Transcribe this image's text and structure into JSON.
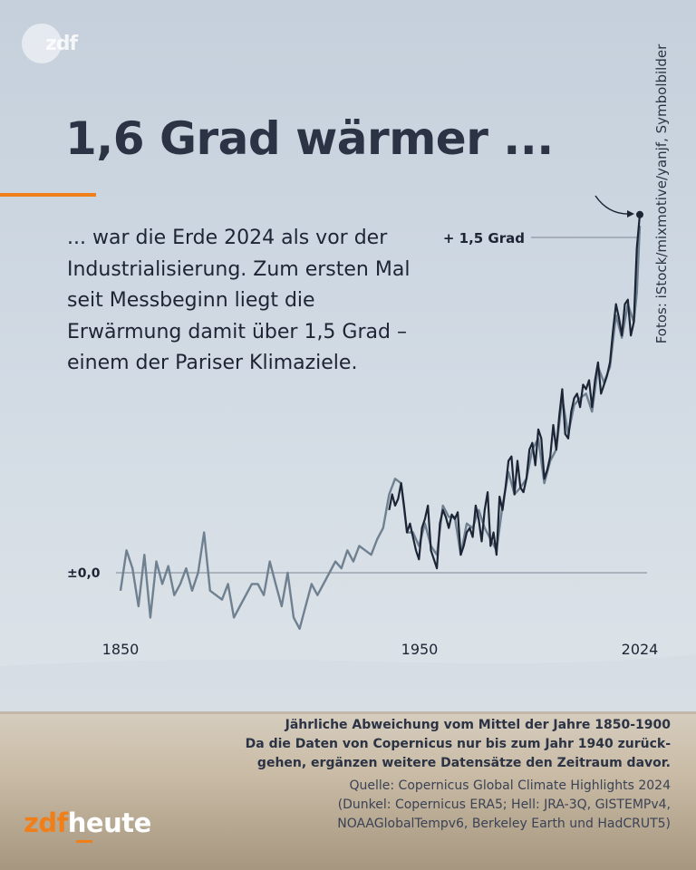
{
  "brand": {
    "top_logo": "zdf",
    "bottom_logo_part1": "zdf",
    "bottom_logo_part2": "heute",
    "accent_color": "#f07f1a",
    "text_color": "#2b3344"
  },
  "photo_credit": "Fotos: iStock/mixmotive/yanjf, Symbolbilder",
  "headline": "1,6 Grad wärmer ...",
  "intro_text": "... war die Erde 2024 als vor der Industrialisierung. Zum ersten Mal seit Messbeginn liegt die Erwärmung damit über 1,5 Grad – einem der Pariser Klimaziele.",
  "notes": {
    "line1": "Jährliche Abweichung vom Mittel der Jahre 1850-1900",
    "line2": "Da die Daten von Copernicus nur bis zum Jahr 1940 zurück-",
    "line3": "gehen, ergänzen weitere Datensätze den Zeitraum davor.",
    "source1": "Quelle: Copernicus Global Climate Highlights 2024",
    "source2": "(Dunkel: Copernicus ERA5; Hell: JRA-3Q, GISTEMPv4,",
    "source3": "NOAAGlobalTempv6, Berkeley Earth und HadCRUT5)"
  },
  "chart_data": {
    "type": "line",
    "title": "",
    "xlabel": "",
    "ylabel": "",
    "x_range": [
      1850,
      2024
    ],
    "y_range": [
      -0.35,
      1.6
    ],
    "xticks": [
      "1850",
      "1950",
      "2024"
    ],
    "reference_lines": [
      {
        "value": 0.0,
        "label": "±0,0"
      },
      {
        "value": 1.5,
        "label": "+ 1,5 Grad"
      }
    ],
    "grid": false,
    "legend": "none",
    "series": [
      {
        "style": "light",
        "color": "#6f8091",
        "points": [
          [
            1850,
            -0.08
          ],
          [
            1852,
            0.1
          ],
          [
            1854,
            0.02
          ],
          [
            1856,
            -0.15
          ],
          [
            1858,
            0.08
          ],
          [
            1860,
            -0.2
          ],
          [
            1862,
            0.05
          ],
          [
            1864,
            -0.05
          ],
          [
            1866,
            0.03
          ],
          [
            1868,
            -0.1
          ],
          [
            1870,
            -0.05
          ],
          [
            1872,
            0.02
          ],
          [
            1874,
            -0.08
          ],
          [
            1876,
            0.0
          ],
          [
            1878,
            0.18
          ],
          [
            1880,
            -0.08
          ],
          [
            1882,
            -0.1
          ],
          [
            1884,
            -0.12
          ],
          [
            1886,
            -0.05
          ],
          [
            1888,
            -0.2
          ],
          [
            1890,
            -0.15
          ],
          [
            1892,
            -0.1
          ],
          [
            1894,
            -0.05
          ],
          [
            1896,
            -0.05
          ],
          [
            1898,
            -0.1
          ],
          [
            1900,
            0.05
          ],
          [
            1902,
            -0.05
          ],
          [
            1904,
            -0.15
          ],
          [
            1906,
            0.0
          ],
          [
            1908,
            -0.2
          ],
          [
            1910,
            -0.25
          ],
          [
            1912,
            -0.15
          ],
          [
            1914,
            -0.05
          ],
          [
            1916,
            -0.1
          ],
          [
            1918,
            -0.05
          ],
          [
            1920,
            0.0
          ],
          [
            1922,
            0.05
          ],
          [
            1924,
            0.02
          ],
          [
            1926,
            0.1
          ],
          [
            1928,
            0.05
          ],
          [
            1930,
            0.12
          ],
          [
            1932,
            0.1
          ],
          [
            1934,
            0.08
          ],
          [
            1936,
            0.15
          ],
          [
            1938,
            0.2
          ],
          [
            1940,
            0.35
          ],
          [
            1942,
            0.42
          ],
          [
            1944,
            0.4
          ],
          [
            1946,
            0.18
          ],
          [
            1948,
            0.18
          ],
          [
            1950,
            0.12
          ],
          [
            1952,
            0.22
          ],
          [
            1954,
            0.12
          ],
          [
            1956,
            0.08
          ],
          [
            1958,
            0.3
          ],
          [
            1960,
            0.25
          ],
          [
            1962,
            0.25
          ],
          [
            1964,
            0.08
          ],
          [
            1966,
            0.22
          ],
          [
            1968,
            0.2
          ],
          [
            1970,
            0.28
          ],
          [
            1972,
            0.2
          ],
          [
            1974,
            0.15
          ],
          [
            1976,
            0.1
          ],
          [
            1978,
            0.3
          ],
          [
            1980,
            0.45
          ],
          [
            1982,
            0.35
          ],
          [
            1984,
            0.38
          ],
          [
            1986,
            0.42
          ],
          [
            1988,
            0.55
          ],
          [
            1990,
            0.6
          ],
          [
            1992,
            0.4
          ],
          [
            1994,
            0.5
          ],
          [
            1996,
            0.55
          ],
          [
            1998,
            0.78
          ],
          [
            2000,
            0.62
          ],
          [
            2002,
            0.75
          ],
          [
            2004,
            0.78
          ],
          [
            2006,
            0.8
          ],
          [
            2008,
            0.72
          ],
          [
            2010,
            0.92
          ],
          [
            2012,
            0.85
          ],
          [
            2014,
            0.92
          ],
          [
            2016,
            1.15
          ],
          [
            2018,
            1.05
          ],
          [
            2020,
            1.2
          ],
          [
            2022,
            1.12
          ],
          [
            2023,
            1.25
          ],
          [
            2024,
            1.55
          ]
        ]
      },
      {
        "style": "dark",
        "color": "#1c2535",
        "points": [
          [
            1940,
            0.28
          ],
          [
            1941,
            0.35
          ],
          [
            1942,
            0.3
          ],
          [
            1943,
            0.33
          ],
          [
            1944,
            0.4
          ],
          [
            1945,
            0.3
          ],
          [
            1946,
            0.18
          ],
          [
            1947,
            0.22
          ],
          [
            1948,
            0.16
          ],
          [
            1949,
            0.1
          ],
          [
            1950,
            0.06
          ],
          [
            1951,
            0.2
          ],
          [
            1952,
            0.24
          ],
          [
            1953,
            0.3
          ],
          [
            1954,
            0.1
          ],
          [
            1955,
            0.06
          ],
          [
            1956,
            0.02
          ],
          [
            1957,
            0.22
          ],
          [
            1958,
            0.28
          ],
          [
            1959,
            0.25
          ],
          [
            1960,
            0.2
          ],
          [
            1961,
            0.26
          ],
          [
            1962,
            0.24
          ],
          [
            1963,
            0.27
          ],
          [
            1964,
            0.08
          ],
          [
            1965,
            0.12
          ],
          [
            1966,
            0.18
          ],
          [
            1967,
            0.2
          ],
          [
            1968,
            0.16
          ],
          [
            1969,
            0.3
          ],
          [
            1970,
            0.24
          ],
          [
            1971,
            0.14
          ],
          [
            1972,
            0.28
          ],
          [
            1973,
            0.36
          ],
          [
            1974,
            0.12
          ],
          [
            1975,
            0.18
          ],
          [
            1976,
            0.08
          ],
          [
            1977,
            0.34
          ],
          [
            1978,
            0.28
          ],
          [
            1979,
            0.38
          ],
          [
            1980,
            0.5
          ],
          [
            1981,
            0.52
          ],
          [
            1982,
            0.35
          ],
          [
            1983,
            0.5
          ],
          [
            1984,
            0.38
          ],
          [
            1985,
            0.36
          ],
          [
            1986,
            0.42
          ],
          [
            1987,
            0.55
          ],
          [
            1988,
            0.58
          ],
          [
            1989,
            0.48
          ],
          [
            1990,
            0.64
          ],
          [
            1991,
            0.6
          ],
          [
            1992,
            0.42
          ],
          [
            1993,
            0.46
          ],
          [
            1994,
            0.52
          ],
          [
            1995,
            0.66
          ],
          [
            1996,
            0.55
          ],
          [
            1997,
            0.7
          ],
          [
            1998,
            0.82
          ],
          [
            1999,
            0.62
          ],
          [
            2000,
            0.6
          ],
          [
            2001,
            0.72
          ],
          [
            2002,
            0.78
          ],
          [
            2003,
            0.8
          ],
          [
            2004,
            0.74
          ],
          [
            2005,
            0.84
          ],
          [
            2006,
            0.82
          ],
          [
            2007,
            0.86
          ],
          [
            2008,
            0.74
          ],
          [
            2009,
            0.86
          ],
          [
            2010,
            0.94
          ],
          [
            2011,
            0.8
          ],
          [
            2012,
            0.84
          ],
          [
            2013,
            0.88
          ],
          [
            2014,
            0.94
          ],
          [
            2015,
            1.08
          ],
          [
            2016,
            1.2
          ],
          [
            2017,
            1.14
          ],
          [
            2018,
            1.06
          ],
          [
            2019,
            1.2
          ],
          [
            2020,
            1.22
          ],
          [
            2021,
            1.06
          ],
          [
            2022,
            1.12
          ],
          [
            2023,
            1.45
          ],
          [
            2024,
            1.6
          ]
        ]
      }
    ],
    "highlight": {
      "x": 2024,
      "y": 1.6
    }
  }
}
